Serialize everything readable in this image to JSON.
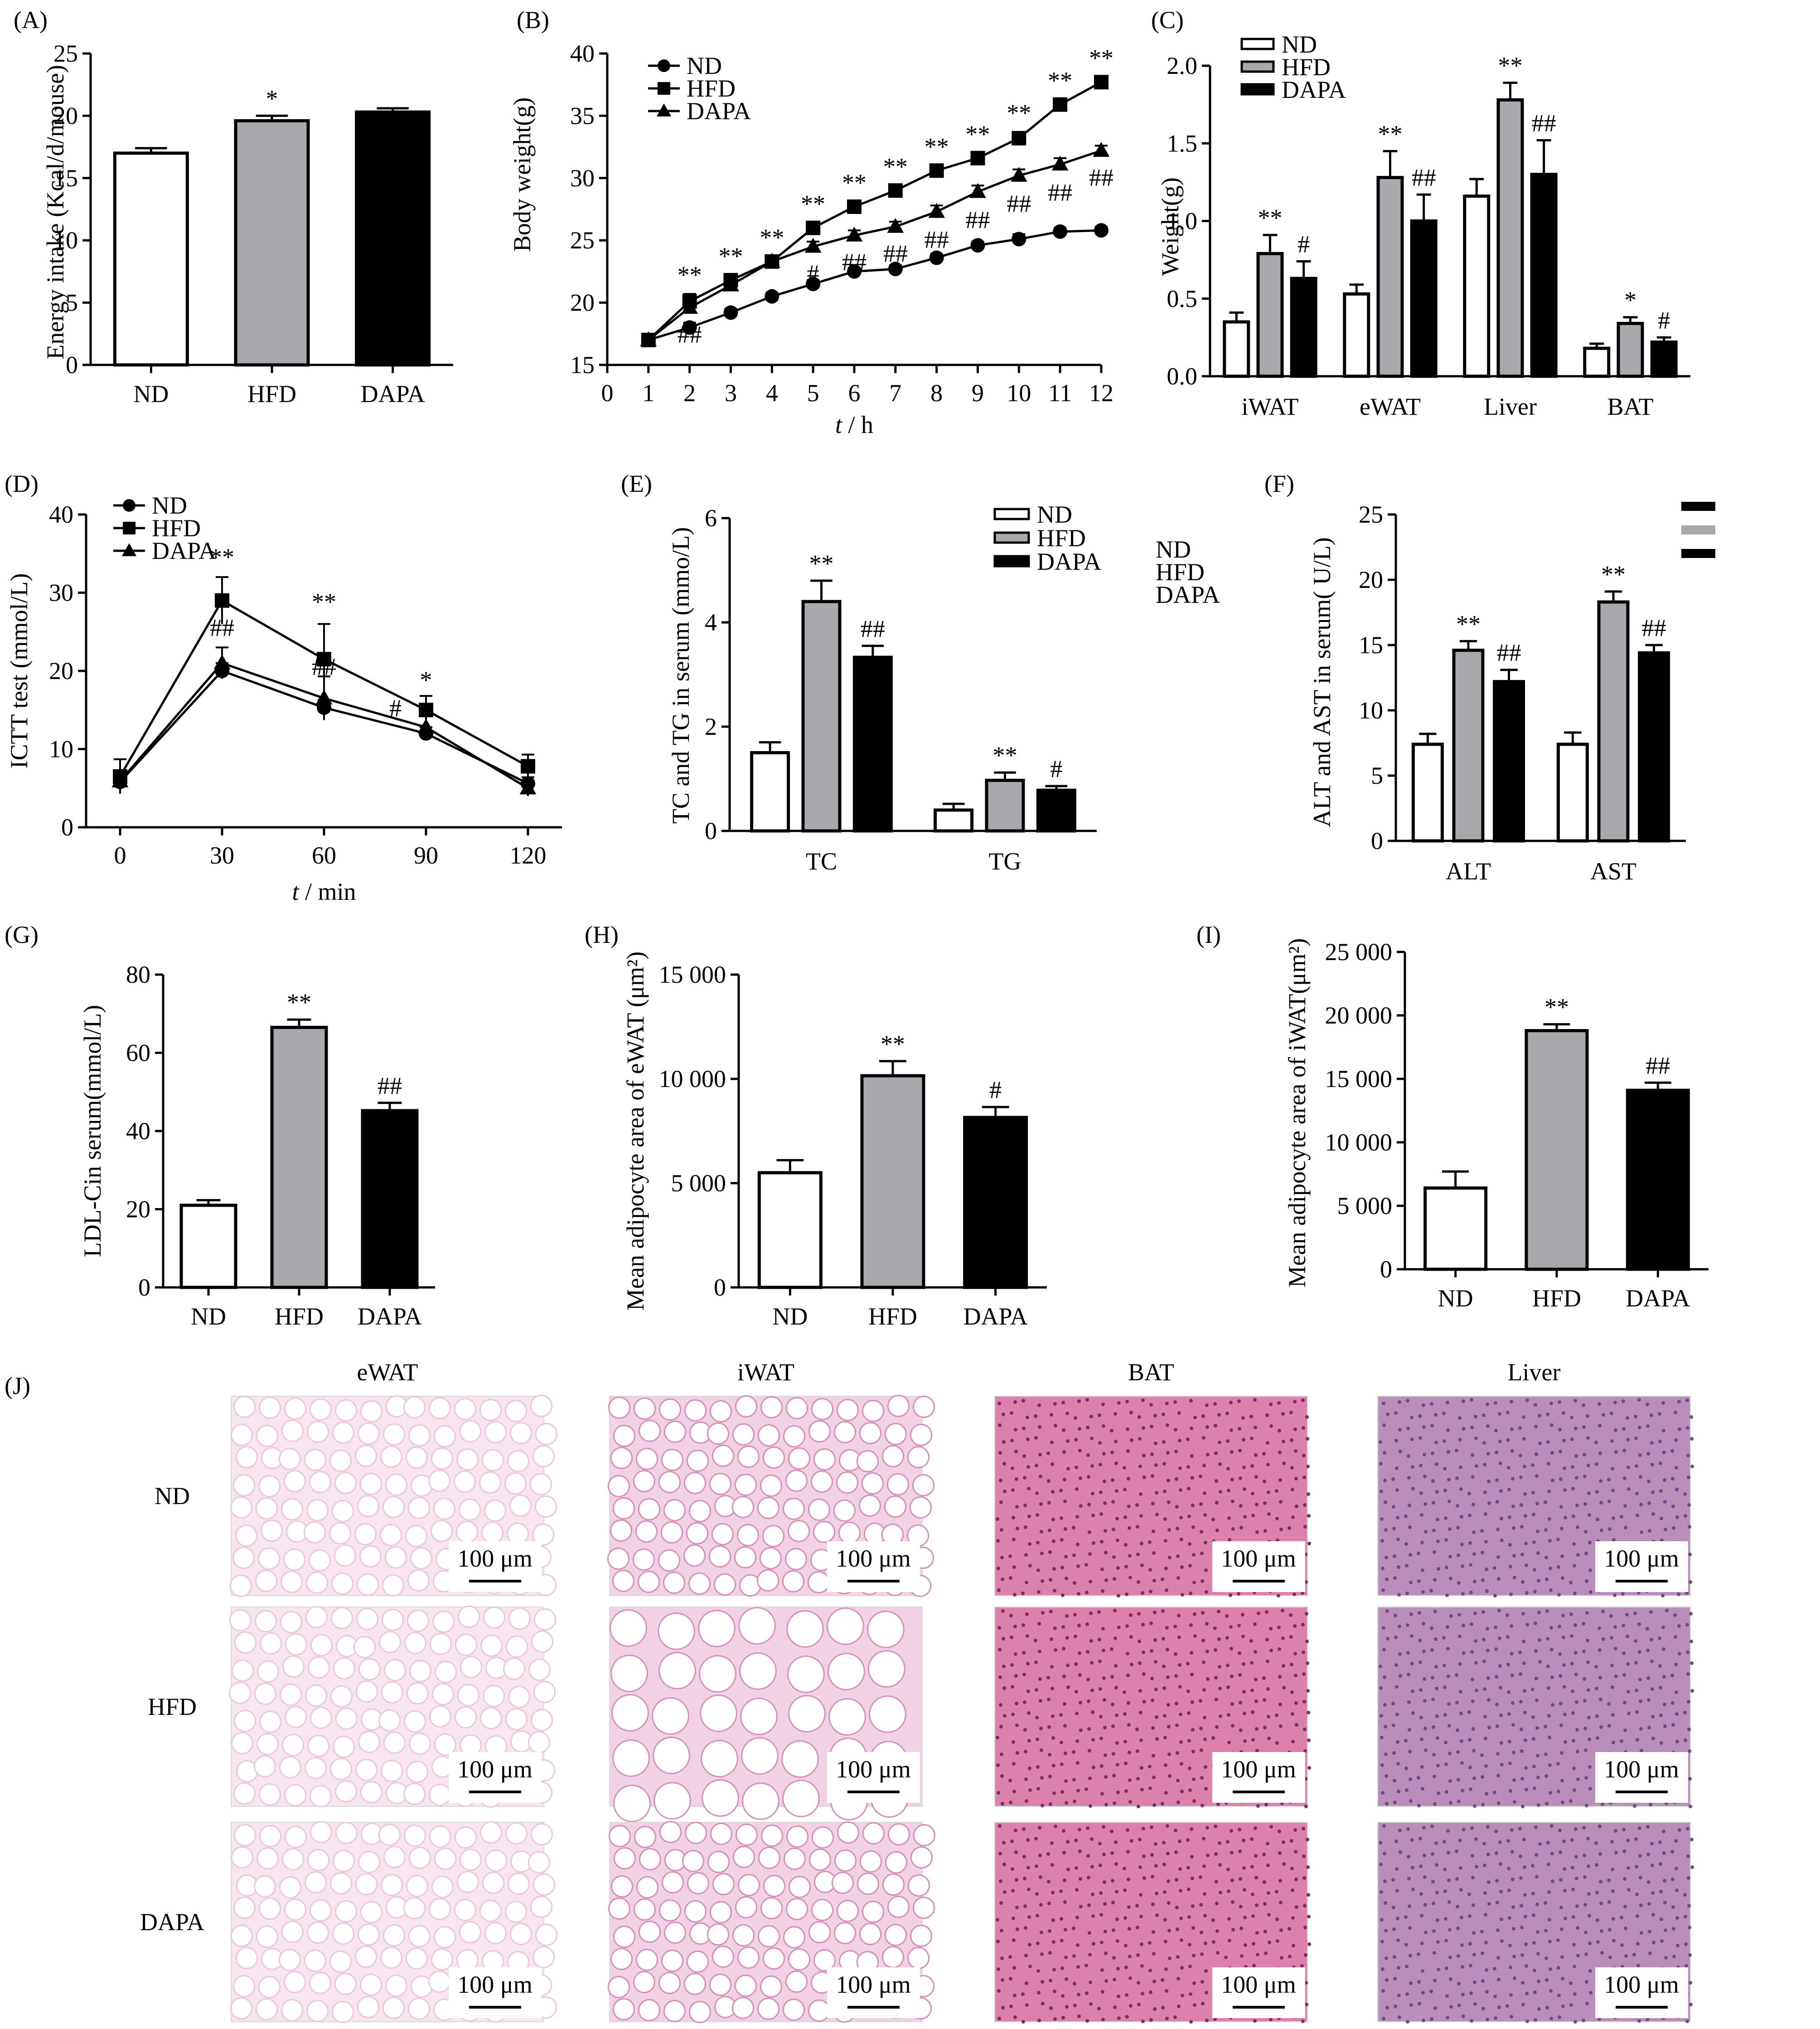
{
  "colors": {
    "ND": "#ffffff",
    "HFD": "#a7a9ac",
    "DAPA": "#000000",
    "axis": "#000000"
  },
  "chart_data": [
    {
      "id": "A",
      "type": "bar",
      "panel_label": "(A)",
      "ylabel": "Energy intake (Kcal/d/mouse)",
      "xlabel": "",
      "categories": [
        "ND",
        "HFD",
        "DAPA"
      ],
      "values": [
        17.0,
        19.6,
        20.3
      ],
      "errors": [
        0.4,
        0.4,
        0.3
      ],
      "annotations": [
        "",
        "*",
        ""
      ],
      "ylim": [
        0,
        25
      ],
      "yticks": [
        0,
        5,
        10,
        15,
        20,
        25
      ]
    },
    {
      "id": "B",
      "type": "line",
      "panel_label": "(B)",
      "ylabel": "Body weight(g)",
      "xlabel": "t / h",
      "x": [
        1,
        2,
        3,
        4,
        5,
        6,
        7,
        8,
        9,
        10,
        11,
        12
      ],
      "xlim": [
        0,
        12
      ],
      "xticks": [
        0,
        1,
        2,
        3,
        4,
        5,
        6,
        7,
        8,
        9,
        10,
        11,
        12
      ],
      "ylim": [
        15,
        40
      ],
      "yticks": [
        15,
        20,
        25,
        30,
        35,
        40
      ],
      "series": [
        {
          "name": "ND",
          "marker": "circle",
          "values": [
            17.0,
            18.0,
            19.2,
            20.5,
            21.5,
            22.5,
            22.7,
            23.6,
            24.6,
            25.1,
            25.7,
            25.8
          ],
          "errors": [
            0.2,
            0.4,
            0.3,
            0.3,
            0.3,
            0.3,
            0.3,
            0.3,
            0.3,
            0.4,
            0.3,
            0.3
          ]
        },
        {
          "name": "HFD",
          "marker": "square",
          "values": [
            17.0,
            20.1,
            21.8,
            23.3,
            26.0,
            27.7,
            29.0,
            30.6,
            31.6,
            33.2,
            35.9,
            37.7
          ],
          "errors": [
            0.2,
            0.6,
            0.4,
            0.4,
            0.4,
            0.4,
            0.4,
            0.4,
            0.4,
            0.5,
            0.4,
            0.4
          ]
        },
        {
          "name": "DAPA",
          "marker": "triangle",
          "values": [
            17.0,
            19.6,
            21.4,
            23.3,
            24.5,
            25.4,
            26.1,
            27.3,
            28.9,
            30.2,
            31.1,
            32.2
          ],
          "errors": [
            0.2,
            0.4,
            0.4,
            0.4,
            0.4,
            0.4,
            0.4,
            0.5,
            0.5,
            0.5,
            0.5,
            0.4
          ]
        }
      ],
      "annotations_upper": [
        {
          "x": 2,
          "text": "**"
        },
        {
          "x": 3,
          "text": "**"
        },
        {
          "x": 4,
          "text": "**"
        },
        {
          "x": 5,
          "text": "**"
        },
        {
          "x": 6,
          "text": "**"
        },
        {
          "x": 7,
          "text": "**"
        },
        {
          "x": 8,
          "text": "**"
        },
        {
          "x": 9,
          "text": "**"
        },
        {
          "x": 10,
          "text": "**"
        },
        {
          "x": 11,
          "text": "**"
        },
        {
          "x": 12,
          "text": "**"
        }
      ],
      "annotations_lower": [
        {
          "x": 2,
          "text": "##"
        },
        {
          "x": 5,
          "text": "#"
        },
        {
          "x": 6,
          "text": "##"
        },
        {
          "x": 7,
          "text": "##"
        },
        {
          "x": 8,
          "text": "##"
        },
        {
          "x": 9,
          "text": "##"
        },
        {
          "x": 10,
          "text": "##"
        },
        {
          "x": 11,
          "text": "##"
        },
        {
          "x": 12,
          "text": "##"
        }
      ]
    },
    {
      "id": "C",
      "type": "bar",
      "panel_label": "(C)",
      "ylabel": "Weight(g)",
      "xlabel": "",
      "categories": [
        "iWAT",
        "eWAT",
        "Liver",
        "BAT"
      ],
      "ylim": [
        0,
        2.0
      ],
      "yticks": [
        "0.0",
        "0.5",
        "1.0",
        "1.5",
        "2.0"
      ],
      "series": [
        {
          "name": "ND",
          "values": [
            0.35,
            0.53,
            1.16,
            0.18
          ],
          "errors": [
            0.06,
            0.06,
            0.11,
            0.03
          ],
          "annotations": [
            "",
            "",
            "",
            ""
          ]
        },
        {
          "name": "HFD",
          "values": [
            0.79,
            1.28,
            1.78,
            0.34
          ],
          "errors": [
            0.12,
            0.17,
            0.11,
            0.04
          ],
          "annotations": [
            "**",
            "**",
            "**",
            "*"
          ]
        },
        {
          "name": "DAPA",
          "values": [
            0.63,
            1.0,
            1.3,
            0.22
          ],
          "errors": [
            0.11,
            0.17,
            0.22,
            0.03
          ],
          "annotations": [
            "#",
            "##",
            "##",
            "#"
          ]
        }
      ]
    },
    {
      "id": "D",
      "type": "line",
      "panel_label": "(D)",
      "ylabel": "ICTT test (mmol/L)",
      "xlabel": "t / min",
      "x": [
        0,
        30,
        60,
        90,
        120
      ],
      "xlim": [
        -10,
        130
      ],
      "xticks": [
        0,
        30,
        60,
        90,
        120
      ],
      "ylim": [
        0,
        40
      ],
      "yticks": [
        0,
        10,
        20,
        30,
        40
      ],
      "series": [
        {
          "name": "ND",
          "marker": "circle",
          "values": [
            5.8,
            20.0,
            15.3,
            12.0,
            5.6
          ],
          "errors": [
            0.6,
            1.0,
            1.0,
            0.8,
            0.8
          ]
        },
        {
          "name": "HFD",
          "marker": "square",
          "values": [
            6.5,
            29.0,
            21.5,
            15.0,
            7.8
          ],
          "errors": [
            2.2,
            3.0,
            4.5,
            1.8,
            1.5
          ]
        },
        {
          "name": "DAPA",
          "marker": "triangle",
          "values": [
            5.9,
            21.0,
            16.5,
            12.8,
            5.0
          ],
          "errors": [
            0.6,
            2.0,
            2.8,
            1.5,
            1.0
          ]
        }
      ],
      "annotations": [
        {
          "x": 30,
          "y": 33.5,
          "text": "**"
        },
        {
          "x": 30,
          "y": 24.5,
          "text": "##"
        },
        {
          "x": 60,
          "y": 27.8,
          "text": "**"
        },
        {
          "x": 60,
          "y": 19.5,
          "text": "##"
        },
        {
          "x": 90,
          "y": 17.8,
          "text": "*"
        },
        {
          "x": 81,
          "y": 14.2,
          "text": "#"
        }
      ]
    },
    {
      "id": "E",
      "type": "bar",
      "panel_label": "(E)",
      "ylabel": "TC and TG in serum (mmo/L)",
      "xlabel": "",
      "categories": [
        "TC",
        "TG"
      ],
      "ylim": [
        0,
        6
      ],
      "yticks": [
        0,
        2,
        4,
        6
      ],
      "series": [
        {
          "name": "ND",
          "values": [
            1.5,
            0.4
          ],
          "errors": [
            0.2,
            0.12
          ],
          "annotations": [
            "",
            ""
          ]
        },
        {
          "name": "HFD",
          "values": [
            4.4,
            0.97
          ],
          "errors": [
            0.4,
            0.15
          ],
          "annotations": [
            "**",
            "**"
          ]
        },
        {
          "name": "DAPA",
          "values": [
            3.33,
            0.78
          ],
          "errors": [
            0.22,
            0.08
          ],
          "annotations": [
            "##",
            "#"
          ]
        }
      ],
      "side_labels": [
        "ND",
        "HFD",
        "DAPA"
      ]
    },
    {
      "id": "F",
      "type": "bar",
      "panel_label": "(F)",
      "ylabel": "ALT and AST in serum( U/L)",
      "xlabel": "",
      "categories": [
        "ALT",
        "AST"
      ],
      "ylim": [
        0,
        25
      ],
      "yticks": [
        0,
        5,
        10,
        15,
        20,
        25
      ],
      "series": [
        {
          "name": "ND",
          "values": [
            7.4,
            7.4
          ],
          "errors": [
            0.8,
            0.9
          ],
          "annotations": [
            "",
            ""
          ]
        },
        {
          "name": "HFD",
          "values": [
            14.6,
            18.3
          ],
          "errors": [
            0.7,
            0.8
          ],
          "annotations": [
            "**",
            "**"
          ]
        },
        {
          "name": "DAPA",
          "values": [
            12.2,
            14.4
          ],
          "errors": [
            0.9,
            0.6
          ],
          "annotations": [
            "##",
            "##"
          ]
        }
      ]
    },
    {
      "id": "G",
      "type": "bar",
      "panel_label": "(G)",
      "ylabel": "LDL-Cin serum(mmol/L)",
      "xlabel": "",
      "categories": [
        "ND",
        "HFD",
        "DAPA"
      ],
      "values": [
        21,
        66.5,
        45.2
      ],
      "errors": [
        1.3,
        2.0,
        2.0
      ],
      "annotations": [
        "",
        "**",
        "##"
      ],
      "ylim": [
        0,
        80
      ],
      "yticks": [
        0,
        20,
        40,
        60,
        80
      ]
    },
    {
      "id": "H",
      "type": "bar",
      "panel_label": "(H)",
      "ylabel": "Mean adipocyte area of eWAT (μm²)",
      "xlabel": "",
      "categories": [
        "ND",
        "HFD",
        "DAPA"
      ],
      "values": [
        5500,
        10150,
        8150
      ],
      "errors": [
        600,
        700,
        500
      ],
      "annotations": [
        "",
        "**",
        "#"
      ],
      "ylim": [
        0,
        15000
      ],
      "yticks": [
        "0",
        "5 000",
        "10 000",
        "15 000"
      ]
    },
    {
      "id": "I",
      "type": "bar",
      "panel_label": "(I)",
      "ylabel": "Mean adipocyte area of iWAT(μm²)",
      "xlabel": "",
      "categories": [
        "ND",
        "HFD",
        "DAPA"
      ],
      "values": [
        6400,
        18800,
        14100
      ],
      "errors": [
        1300,
        500,
        600
      ],
      "annotations": [
        "",
        "**",
        "##"
      ],
      "ylim": [
        0,
        25000
      ],
      "yticks": [
        "0",
        "5 000",
        "10 000",
        "15 000",
        "20 000",
        "25 000"
      ]
    }
  ],
  "histology": {
    "panel_label": "(J)",
    "columns": [
      "eWAT",
      "iWAT",
      "BAT",
      "Liver"
    ],
    "rows": [
      "ND",
      "HFD",
      "DAPA"
    ],
    "scale_bar_label": "100 μm",
    "tissue_colors": {
      "eWAT": "#f7e6f0",
      "iWAT": "#f1d2e4",
      "BAT": "#dc80ac",
      "Liver": "#b98fba"
    }
  }
}
